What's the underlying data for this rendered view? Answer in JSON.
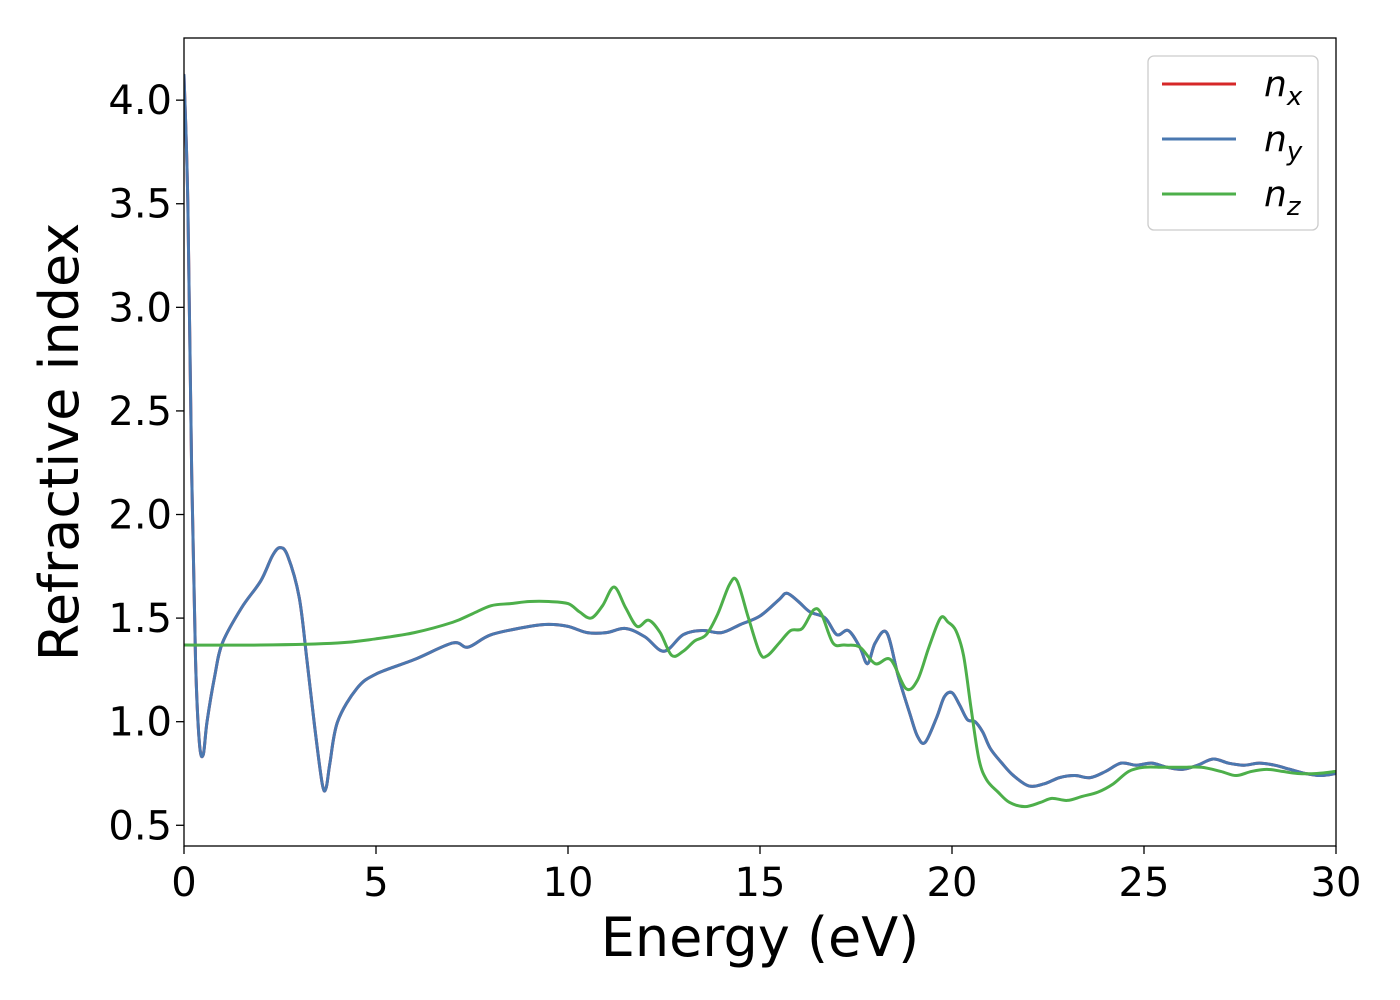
{
  "chart_data": {
    "type": "line",
    "xlabel": "Energy (eV)",
    "ylabel": "Refractive index",
    "xlim": [
      0,
      30
    ],
    "ylim": [
      0.4,
      4.3
    ],
    "xticks": [
      0,
      5,
      10,
      15,
      20,
      25,
      30
    ],
    "xtick_labels": [
      "0",
      "5",
      "10",
      "15",
      "20",
      "25",
      "30"
    ],
    "yticks": [
      0.5,
      1.0,
      1.5,
      2.0,
      2.5,
      3.0,
      3.5,
      4.0
    ],
    "ytick_labels": [
      "0.5",
      "1.0",
      "1.5",
      "2.0",
      "2.5",
      "3.0",
      "3.5",
      "4.0"
    ],
    "grid": false,
    "legend_position": "top-right",
    "series": [
      {
        "name": "n",
        "subscript": "x",
        "color": "#d62728",
        "x": [
          0.0,
          0.1,
          0.2,
          0.3,
          0.4,
          0.5,
          0.6,
          0.8,
          1.0,
          1.5,
          2.0,
          2.3,
          2.5,
          2.7,
          3.0,
          3.2,
          3.4,
          3.6,
          3.7,
          3.8,
          4.0,
          4.5,
          5.0,
          6.0,
          7.0,
          7.4,
          8.0,
          9.0,
          9.5,
          10.0,
          10.5,
          11.0,
          11.5,
          12.0,
          12.5,
          13.0,
          13.5,
          14.0,
          14.5,
          15.0,
          15.5,
          15.7,
          16.0,
          16.3,
          16.7,
          17.0,
          17.3,
          17.6,
          17.8,
          18.0,
          18.3,
          18.6,
          18.9,
          19.1,
          19.3,
          19.6,
          19.8,
          20.0,
          20.2,
          20.4,
          20.6,
          20.8,
          21.0,
          21.3,
          21.6,
          22.0,
          22.4,
          22.8,
          23.2,
          23.6,
          24.0,
          24.4,
          24.8,
          25.2,
          25.6,
          26.0,
          26.4,
          26.8,
          27.2,
          27.6,
          28.0,
          28.4,
          28.8,
          29.2,
          29.6,
          30.0
        ],
        "y": [
          4.12,
          3.5,
          2.2,
          1.3,
          0.9,
          0.84,
          1.0,
          1.22,
          1.38,
          1.55,
          1.68,
          1.8,
          1.84,
          1.8,
          1.6,
          1.3,
          0.98,
          0.7,
          0.68,
          0.8,
          1.0,
          1.16,
          1.23,
          1.3,
          1.38,
          1.36,
          1.42,
          1.46,
          1.47,
          1.46,
          1.43,
          1.43,
          1.45,
          1.41,
          1.34,
          1.42,
          1.44,
          1.43,
          1.47,
          1.51,
          1.59,
          1.62,
          1.58,
          1.53,
          1.5,
          1.42,
          1.44,
          1.36,
          1.28,
          1.38,
          1.43,
          1.22,
          1.04,
          0.93,
          0.9,
          1.02,
          1.12,
          1.14,
          1.08,
          1.01,
          1.0,
          0.95,
          0.87,
          0.8,
          0.74,
          0.69,
          0.7,
          0.73,
          0.74,
          0.73,
          0.76,
          0.8,
          0.79,
          0.8,
          0.78,
          0.77,
          0.79,
          0.82,
          0.8,
          0.79,
          0.8,
          0.79,
          0.77,
          0.75,
          0.74,
          0.75
        ]
      },
      {
        "name": "n",
        "subscript": "y",
        "color": "#4a78b0",
        "x": [
          0.0,
          0.1,
          0.2,
          0.3,
          0.4,
          0.5,
          0.6,
          0.8,
          1.0,
          1.5,
          2.0,
          2.3,
          2.5,
          2.7,
          3.0,
          3.2,
          3.4,
          3.6,
          3.7,
          3.8,
          4.0,
          4.5,
          5.0,
          6.0,
          7.0,
          7.4,
          8.0,
          9.0,
          9.5,
          10.0,
          10.5,
          11.0,
          11.5,
          12.0,
          12.5,
          13.0,
          13.5,
          14.0,
          14.5,
          15.0,
          15.5,
          15.7,
          16.0,
          16.3,
          16.7,
          17.0,
          17.3,
          17.6,
          17.8,
          18.0,
          18.3,
          18.6,
          18.9,
          19.1,
          19.3,
          19.6,
          19.8,
          20.0,
          20.2,
          20.4,
          20.6,
          20.8,
          21.0,
          21.3,
          21.6,
          22.0,
          22.4,
          22.8,
          23.2,
          23.6,
          24.0,
          24.4,
          24.8,
          25.2,
          25.6,
          26.0,
          26.4,
          26.8,
          27.2,
          27.6,
          28.0,
          28.4,
          28.8,
          29.2,
          29.6,
          30.0
        ],
        "y": [
          4.12,
          3.5,
          2.2,
          1.3,
          0.9,
          0.84,
          1.0,
          1.22,
          1.38,
          1.55,
          1.68,
          1.8,
          1.84,
          1.8,
          1.6,
          1.3,
          0.98,
          0.7,
          0.68,
          0.8,
          1.0,
          1.16,
          1.23,
          1.3,
          1.38,
          1.36,
          1.42,
          1.46,
          1.47,
          1.46,
          1.43,
          1.43,
          1.45,
          1.41,
          1.34,
          1.42,
          1.44,
          1.43,
          1.47,
          1.51,
          1.59,
          1.62,
          1.58,
          1.53,
          1.5,
          1.42,
          1.44,
          1.36,
          1.28,
          1.38,
          1.43,
          1.22,
          1.04,
          0.93,
          0.9,
          1.02,
          1.12,
          1.14,
          1.08,
          1.01,
          1.0,
          0.95,
          0.87,
          0.8,
          0.74,
          0.69,
          0.7,
          0.73,
          0.74,
          0.73,
          0.76,
          0.8,
          0.79,
          0.8,
          0.78,
          0.77,
          0.79,
          0.82,
          0.8,
          0.79,
          0.8,
          0.79,
          0.77,
          0.75,
          0.74,
          0.75
        ]
      },
      {
        "name": "n",
        "subscript": "z",
        "color": "#4daf4a",
        "x": [
          0.0,
          2.0,
          4.0,
          5.0,
          6.0,
          7.0,
          7.5,
          8.0,
          8.5,
          9.0,
          9.5,
          10.0,
          10.3,
          10.6,
          10.9,
          11.2,
          11.5,
          11.8,
          12.1,
          12.4,
          12.7,
          13.0,
          13.3,
          13.6,
          13.9,
          14.2,
          14.4,
          14.7,
          15.0,
          15.2,
          15.5,
          15.8,
          16.1,
          16.4,
          16.6,
          16.9,
          17.2,
          17.6,
          18.0,
          18.4,
          18.8,
          19.1,
          19.4,
          19.7,
          19.9,
          20.1,
          20.3,
          20.5,
          20.7,
          20.9,
          21.2,
          21.5,
          21.9,
          22.3,
          22.6,
          23.0,
          23.4,
          23.8,
          24.2,
          24.6,
          25.0,
          25.5,
          26.0,
          26.5,
          27.0,
          27.4,
          27.8,
          28.2,
          28.6,
          29.0,
          29.5,
          30.0
        ],
        "y": [
          1.37,
          1.37,
          1.38,
          1.4,
          1.43,
          1.48,
          1.52,
          1.56,
          1.57,
          1.58,
          1.58,
          1.57,
          1.53,
          1.5,
          1.56,
          1.65,
          1.55,
          1.46,
          1.49,
          1.43,
          1.32,
          1.34,
          1.39,
          1.42,
          1.52,
          1.66,
          1.68,
          1.5,
          1.33,
          1.32,
          1.38,
          1.44,
          1.45,
          1.54,
          1.52,
          1.38,
          1.37,
          1.36,
          1.28,
          1.3,
          1.16,
          1.2,
          1.36,
          1.5,
          1.48,
          1.44,
          1.32,
          1.06,
          0.82,
          0.72,
          0.66,
          0.61,
          0.59,
          0.61,
          0.63,
          0.62,
          0.64,
          0.66,
          0.7,
          0.76,
          0.78,
          0.78,
          0.78,
          0.78,
          0.76,
          0.74,
          0.76,
          0.77,
          0.76,
          0.75,
          0.75,
          0.76
        ]
      }
    ]
  }
}
